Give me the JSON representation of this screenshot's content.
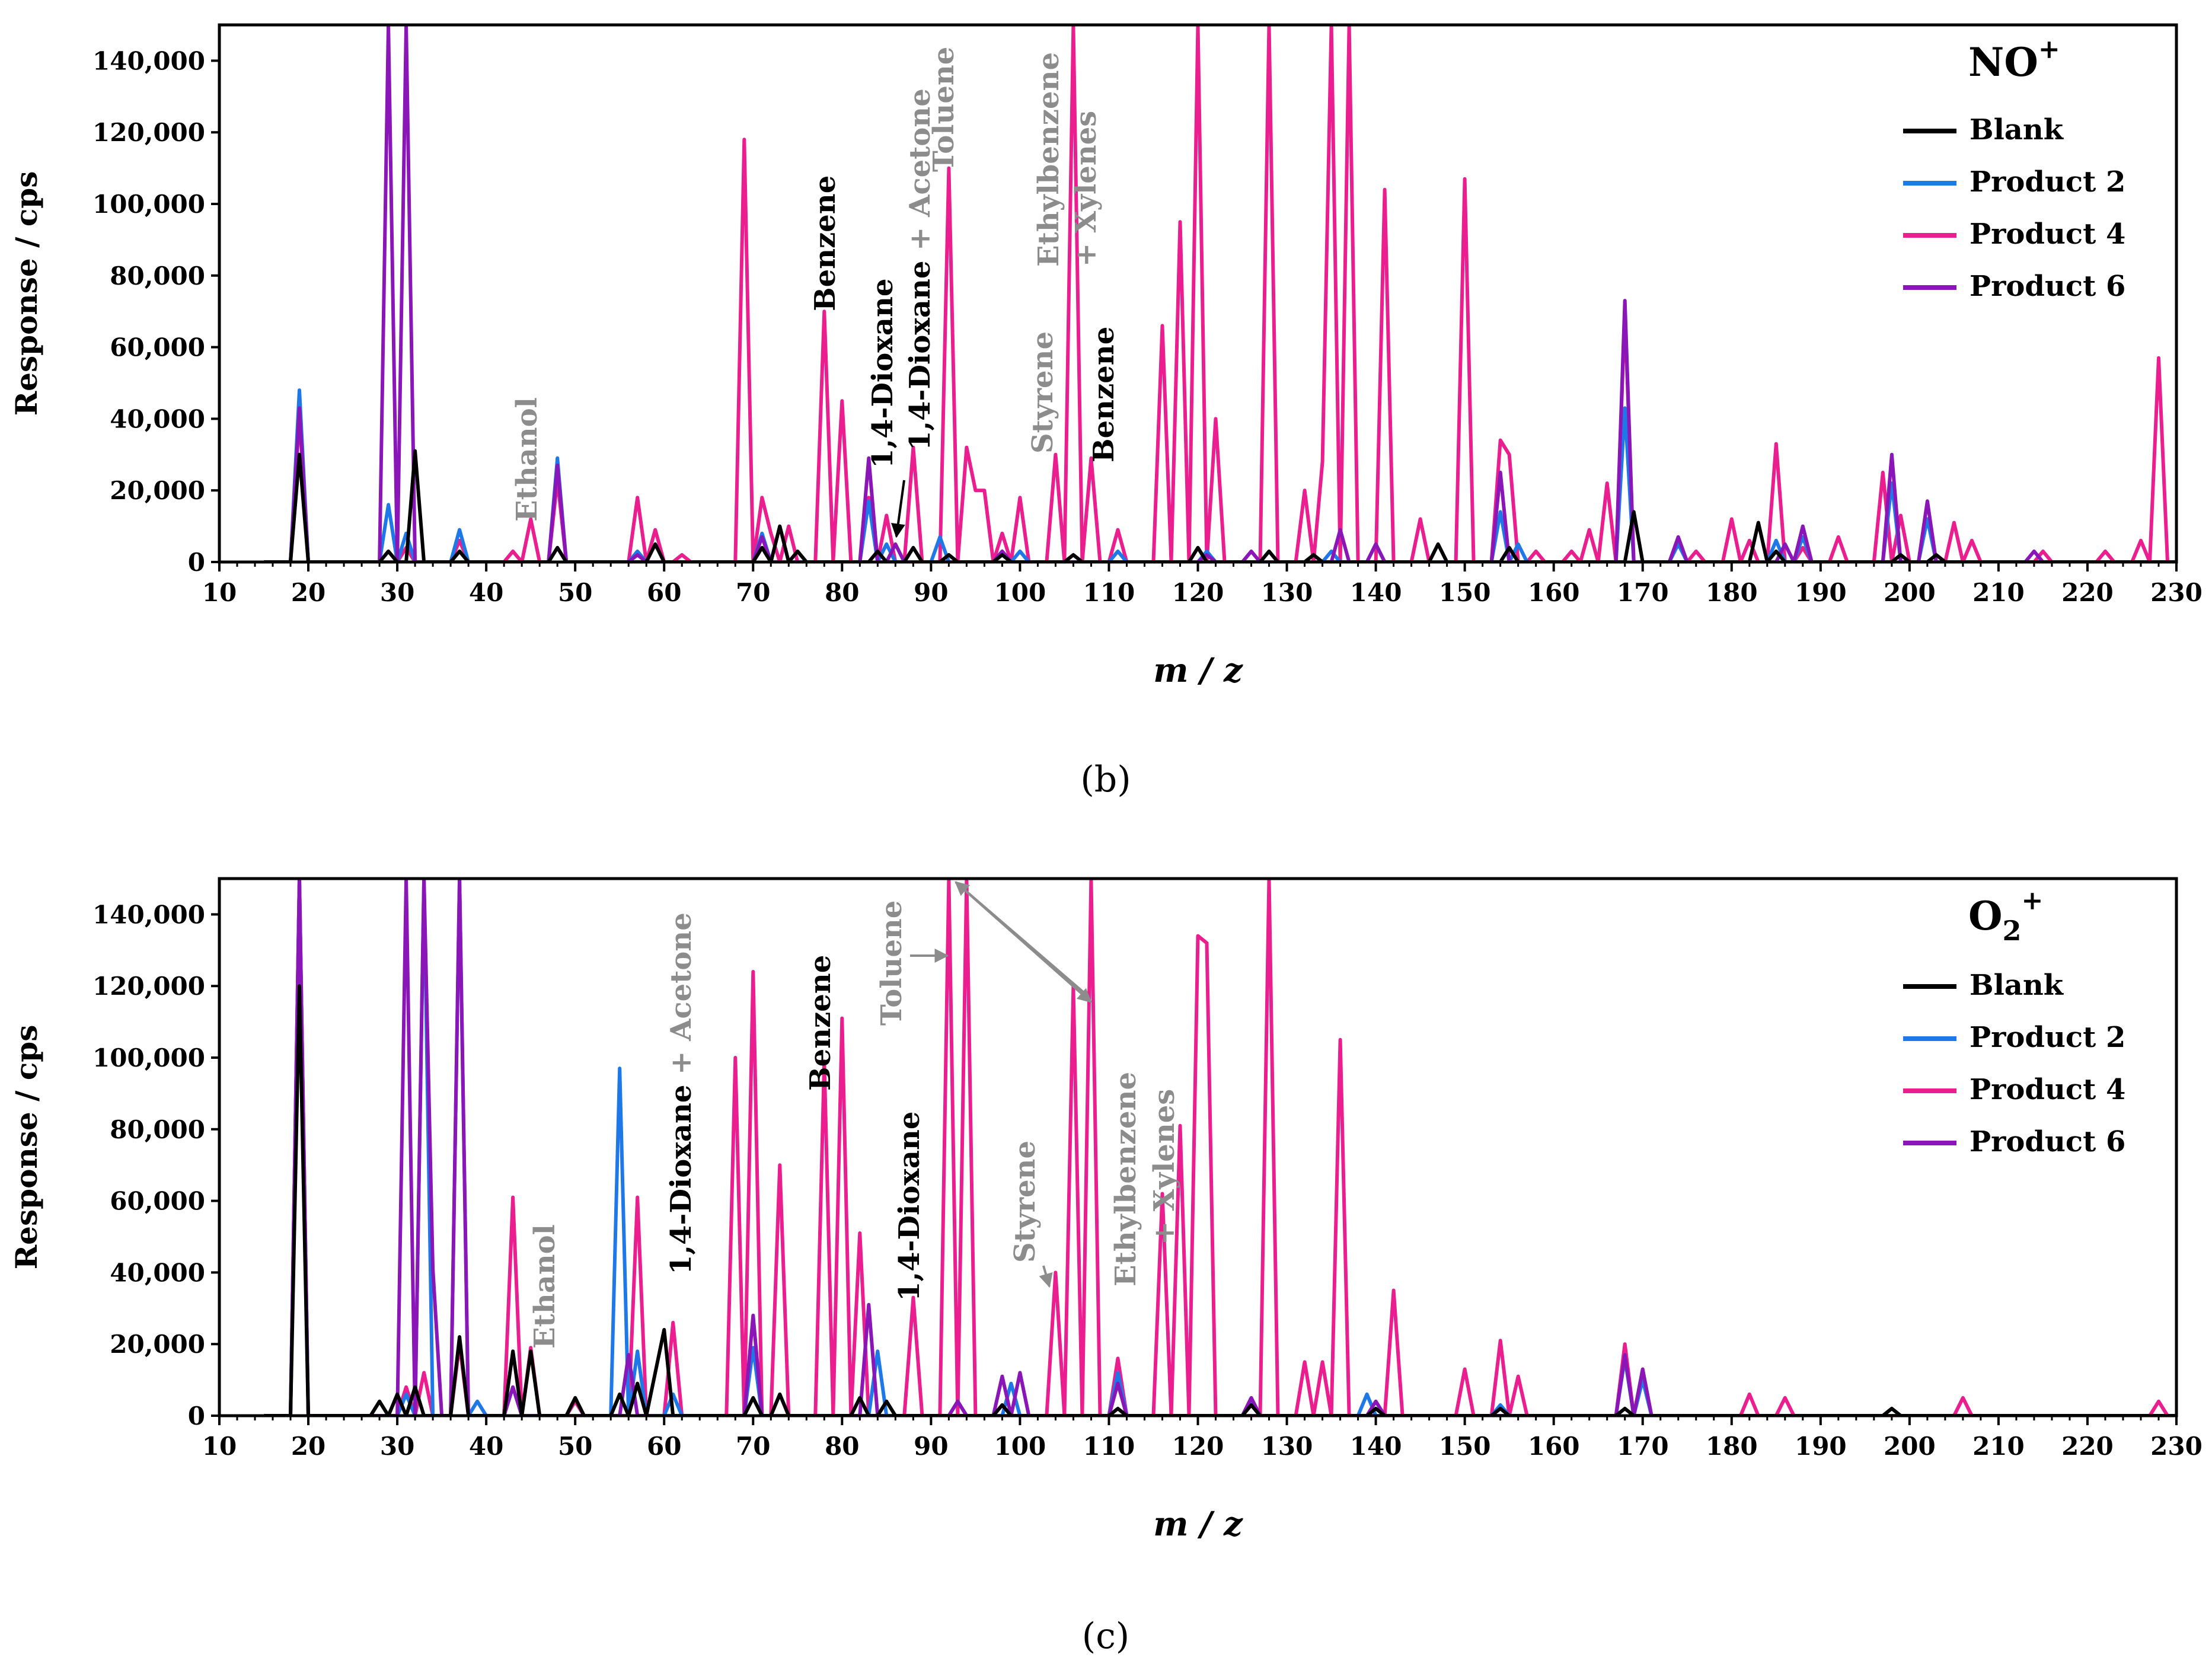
{
  "colors": {
    "Blank": "#000000",
    "Product 2": "#1f78e8",
    "Product 4": "#ea1e8e",
    "Product 6": "#8a16b8",
    "gray_annotation": "#8c8c8c"
  },
  "chart_data": [
    {
      "type": "line",
      "panel_caption": "(b)",
      "caption_letter": "b",
      "ion_label": "NO",
      "ion_charge": "+",
      "ion_subscript": "",
      "xlabel": "m / z",
      "ylabel": "Response / cps",
      "xlim": [
        10,
        230
      ],
      "ylim": [
        0,
        150000
      ],
      "xticks": [
        "10",
        "20",
        "30",
        "40",
        "50",
        "60",
        "70",
        "80",
        "90",
        "100",
        "110",
        "120",
        "130",
        "140",
        "150",
        "160",
        "170",
        "180",
        "190",
        "200",
        "210",
        "220",
        "230"
      ],
      "yticks": [
        "0",
        "20,000",
        "40,000",
        "60,000",
        "80,000",
        "100,000",
        "120,000",
        "140,000"
      ],
      "legend": [
        "Blank",
        "Product 2",
        "Product 4",
        "Product 6"
      ],
      "series": [
        {
          "name": "Blank",
          "peaks": [
            [
              19,
              30000
            ],
            [
              29,
              3000
            ],
            [
              32,
              31000
            ],
            [
              37,
              3000
            ],
            [
              48,
              4000
            ],
            [
              59,
              5000
            ],
            [
              71,
              4000
            ],
            [
              73,
              10000
            ],
            [
              75,
              3000
            ],
            [
              84,
              3000
            ],
            [
              88,
              4000
            ],
            [
              92,
              2000
            ],
            [
              98,
              2000
            ],
            [
              106,
              2000
            ],
            [
              120,
              4000
            ],
            [
              128,
              3000
            ],
            [
              133,
              2000
            ],
            [
              147,
              5000
            ],
            [
              155,
              4000
            ],
            [
              169,
              14000
            ],
            [
              183,
              11000
            ],
            [
              185,
              3000
            ],
            [
              199,
              2000
            ],
            [
              203,
              2000
            ]
          ]
        },
        {
          "name": "Product 2",
          "peaks": [
            [
              19,
              48000
            ],
            [
              29,
              16000
            ],
            [
              31,
              8000
            ],
            [
              37,
              9000
            ],
            [
              48,
              29000
            ],
            [
              57,
              3000
            ],
            [
              71,
              8000
            ],
            [
              83,
              17000
            ],
            [
              85,
              5000
            ],
            [
              91,
              7000
            ],
            [
              98,
              3000
            ],
            [
              100,
              3000
            ],
            [
              111,
              3000
            ],
            [
              121,
              3000
            ],
            [
              135,
              3000
            ],
            [
              140,
              5000
            ],
            [
              154,
              14000
            ],
            [
              156,
              5000
            ],
            [
              168,
              43000
            ],
            [
              174,
              5000
            ],
            [
              185,
              6000
            ],
            [
              188,
              7000
            ],
            [
              198,
              22000
            ],
            [
              202,
              12000
            ]
          ]
        },
        {
          "name": "Product 4",
          "peaks": [
            [
              19,
              41000
            ],
            [
              31,
              4000
            ],
            [
              37,
              6000
            ],
            [
              43,
              3000
            ],
            [
              45,
              12000
            ],
            [
              48,
              23000
            ],
            [
              57,
              18000
            ],
            [
              59,
              9000
            ],
            [
              62,
              2000
            ],
            [
              69,
              118000
            ],
            [
              71,
              18000
            ],
            [
              72,
              8000
            ],
            [
              74,
              10000
            ],
            [
              78,
              70000
            ],
            [
              80,
              45000
            ],
            [
              83,
              18000
            ],
            [
              85,
              13000
            ],
            [
              88,
              32000
            ],
            [
              92,
              110000
            ],
            [
              94,
              32000
            ],
            [
              95,
              20000
            ],
            [
              96,
              20000
            ],
            [
              98,
              8000
            ],
            [
              100,
              18000
            ],
            [
              104,
              30000
            ],
            [
              106,
              150000
            ],
            [
              108,
              29000
            ],
            [
              111,
              9000
            ],
            [
              116,
              66000
            ],
            [
              118,
              95000
            ],
            [
              120,
              150000
            ],
            [
              122,
              40000
            ],
            [
              128,
              150000
            ],
            [
              132,
              20000
            ],
            [
              134,
              28000
            ],
            [
              135,
              150000
            ],
            [
              137,
              150000
            ],
            [
              141,
              104000
            ],
            [
              145,
              12000
            ],
            [
              150,
              107000
            ],
            [
              154,
              34000
            ],
            [
              155,
              30000
            ],
            [
              158,
              3000
            ],
            [
              162,
              3000
            ],
            [
              164,
              9000
            ],
            [
              166,
              22000
            ],
            [
              168,
              70000
            ],
            [
              176,
              3000
            ],
            [
              180,
              12000
            ],
            [
              182,
              6000
            ],
            [
              185,
              33000
            ],
            [
              188,
              4000
            ],
            [
              192,
              7000
            ],
            [
              197,
              25000
            ],
            [
              199,
              13000
            ],
            [
              205,
              11000
            ],
            [
              207,
              6000
            ],
            [
              215,
              3000
            ],
            [
              222,
              3000
            ],
            [
              226,
              6000
            ],
            [
              228,
              57000
            ]
          ]
        },
        {
          "name": "Product 6",
          "peaks": [
            [
              19,
              43000
            ],
            [
              29,
              150000
            ],
            [
              31,
              150000
            ],
            [
              48,
              27000
            ],
            [
              57,
              2000
            ],
            [
              71,
              7000
            ],
            [
              83,
              29000
            ],
            [
              86,
              5000
            ],
            [
              98,
              3000
            ],
            [
              121,
              2000
            ],
            [
              126,
              3000
            ],
            [
              136,
              9000
            ],
            [
              140,
              5000
            ],
            [
              154,
              25000
            ],
            [
              168,
              73000
            ],
            [
              174,
              7000
            ],
            [
              186,
              5000
            ],
            [
              188,
              10000
            ],
            [
              198,
              30000
            ],
            [
              202,
              17000
            ],
            [
              214,
              3000
            ]
          ]
        }
      ],
      "annotations": [
        {
          "text": "Ethanol",
          "color": "gray"
        },
        {
          "text": "Benzene",
          "color": "black"
        },
        {
          "text": "1,4-Dioxane",
          "color": "black"
        },
        {
          "text": "1,4-Dioxane + Acetone",
          "color": "mixed"
        },
        {
          "text": "Toluene",
          "color": "gray"
        },
        {
          "text": "Styrene",
          "color": "gray"
        },
        {
          "text": "Ethylbenzene",
          "color": "gray"
        },
        {
          "text": "+ Xylenes",
          "color": "gray"
        },
        {
          "text": "Benzene",
          "color": "black"
        }
      ]
    },
    {
      "type": "line",
      "panel_caption": "(c)",
      "caption_letter": "c",
      "ion_label": "O",
      "ion_charge": "+",
      "ion_subscript": "2",
      "xlabel": "m / z",
      "ylabel": "Response / cps",
      "xlim": [
        10,
        230
      ],
      "ylim": [
        0,
        150000
      ],
      "xticks": [
        "10",
        "20",
        "30",
        "40",
        "50",
        "60",
        "70",
        "80",
        "90",
        "100",
        "110",
        "120",
        "130",
        "140",
        "150",
        "160",
        "170",
        "180",
        "190",
        "200",
        "210",
        "220",
        "230"
      ],
      "yticks": [
        "0",
        "20,000",
        "40,000",
        "60,000",
        "80,000",
        "100,000",
        "120,000",
        "140,000"
      ],
      "legend": [
        "Blank",
        "Product 2",
        "Product 4",
        "Product 6"
      ],
      "series": [
        {
          "name": "Blank",
          "peaks": [
            [
              19,
              120000
            ],
            [
              28,
              4000
            ],
            [
              30,
              6000
            ],
            [
              32,
              8000
            ],
            [
              37,
              22000
            ],
            [
              43,
              18000
            ],
            [
              45,
              18000
            ],
            [
              50,
              5000
            ],
            [
              55,
              6000
            ],
            [
              57,
              9000
            ],
            [
              59,
              12000
            ],
            [
              60,
              24000
            ],
            [
              70,
              5000
            ],
            [
              73,
              6000
            ],
            [
              82,
              5000
            ],
            [
              85,
              4000
            ],
            [
              98,
              3000
            ],
            [
              111,
              2000
            ],
            [
              126,
              3000
            ],
            [
              140,
              2000
            ],
            [
              154,
              2000
            ],
            [
              168,
              2000
            ],
            [
              198,
              2000
            ]
          ]
        },
        {
          "name": "Product 2",
          "peaks": [
            [
              19,
              150000
            ],
            [
              31,
              6000
            ],
            [
              33,
              150000
            ],
            [
              37,
              150000
            ],
            [
              39,
              4000
            ],
            [
              43,
              8000
            ],
            [
              55,
              97000
            ],
            [
              57,
              18000
            ],
            [
              61,
              6000
            ],
            [
              70,
              19000
            ],
            [
              84,
              18000
            ],
            [
              93,
              4000
            ],
            [
              99,
              9000
            ],
            [
              111,
              12000
            ],
            [
              126,
              4000
            ],
            [
              139,
              6000
            ],
            [
              154,
              3000
            ],
            [
              168,
              16000
            ],
            [
              170,
              10000
            ]
          ]
        },
        {
          "name": "Product 4",
          "peaks": [
            [
              19,
              150000
            ],
            [
              31,
              8000
            ],
            [
              33,
              12000
            ],
            [
              37,
              20000
            ],
            [
              43,
              61000
            ],
            [
              45,
              19000
            ],
            [
              50,
              4000
            ],
            [
              57,
              61000
            ],
            [
              61,
              26000
            ],
            [
              68,
              100000
            ],
            [
              70,
              124000
            ],
            [
              73,
              70000
            ],
            [
              78,
              99000
            ],
            [
              80,
              111000
            ],
            [
              82,
              51000
            ],
            [
              88,
              33000
            ],
            [
              92,
              150000
            ],
            [
              94,
              150000
            ],
            [
              104,
              40000
            ],
            [
              106,
              120000
            ],
            [
              108,
              150000
            ],
            [
              111,
              16000
            ],
            [
              116,
              62000
            ],
            [
              118,
              81000
            ],
            [
              120,
              134000
            ],
            [
              121,
              132000
            ],
            [
              128,
              150000
            ],
            [
              132,
              15000
            ],
            [
              134,
              15000
            ],
            [
              136,
              105000
            ],
            [
              142,
              35000
            ],
            [
              150,
              13000
            ],
            [
              154,
              21000
            ],
            [
              156,
              11000
            ],
            [
              168,
              20000
            ],
            [
              182,
              6000
            ],
            [
              186,
              5000
            ],
            [
              206,
              5000
            ],
            [
              228,
              4000
            ]
          ]
        },
        {
          "name": "Product 6",
          "peaks": [
            [
              19,
              150000
            ],
            [
              31,
              150000
            ],
            [
              33,
              150000
            ],
            [
              34,
              41000
            ],
            [
              37,
              150000
            ],
            [
              43,
              8000
            ],
            [
              56,
              17000
            ],
            [
              70,
              28000
            ],
            [
              83,
              31000
            ],
            [
              93,
              4000
            ],
            [
              98,
              11000
            ],
            [
              100,
              12000
            ],
            [
              111,
              9000
            ],
            [
              126,
              5000
            ],
            [
              140,
              4000
            ],
            [
              168,
              17000
            ],
            [
              170,
              13000
            ]
          ]
        }
      ],
      "annotations": [
        {
          "text": "Ethanol",
          "color": "gray"
        },
        {
          "text": "1,4-Dioxane + Acetone",
          "color": "mixed"
        },
        {
          "text": "Benzene",
          "color": "black"
        },
        {
          "text": "1,4-Dioxane",
          "color": "black"
        },
        {
          "text": "Toluene",
          "color": "gray"
        },
        {
          "text": "Styrene",
          "color": "gray"
        },
        {
          "text": "Ethylbenzene",
          "color": "gray"
        },
        {
          "text": "+ Xylenes",
          "color": "gray"
        }
      ]
    }
  ]
}
